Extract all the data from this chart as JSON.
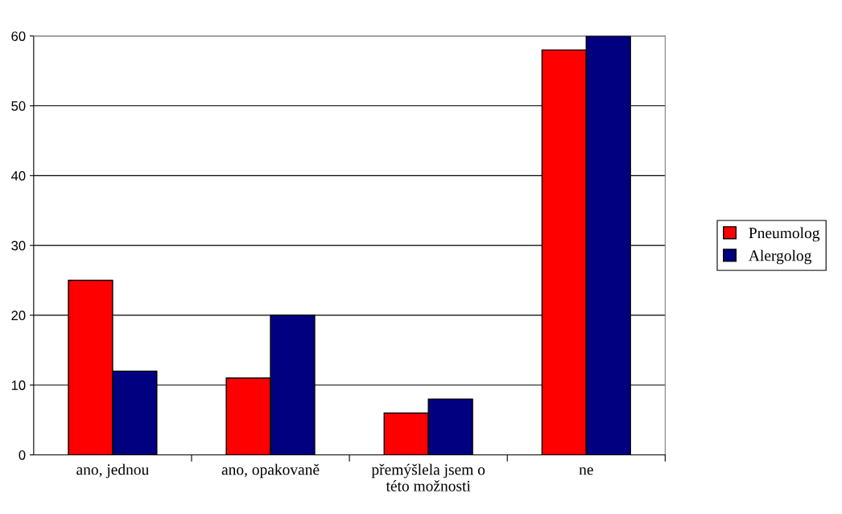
{
  "chart_data": {
    "type": "bar",
    "categories": [
      "ano, jednou",
      "ano, opakovaně",
      "přemýšlela jsem o\ntéto možnosti",
      "ne"
    ],
    "series": [
      {
        "name": "Pneumolog",
        "color": "#ff0000",
        "values": [
          25,
          11,
          6,
          58
        ]
      },
      {
        "name": "Alergolog",
        "color": "#000080",
        "values": [
          12,
          20,
          8,
          60
        ]
      }
    ],
    "ylim": [
      0,
      60
    ],
    "yticks": [
      0,
      10,
      20,
      30,
      40,
      50,
      60
    ],
    "grid": "y",
    "legend": "right"
  }
}
